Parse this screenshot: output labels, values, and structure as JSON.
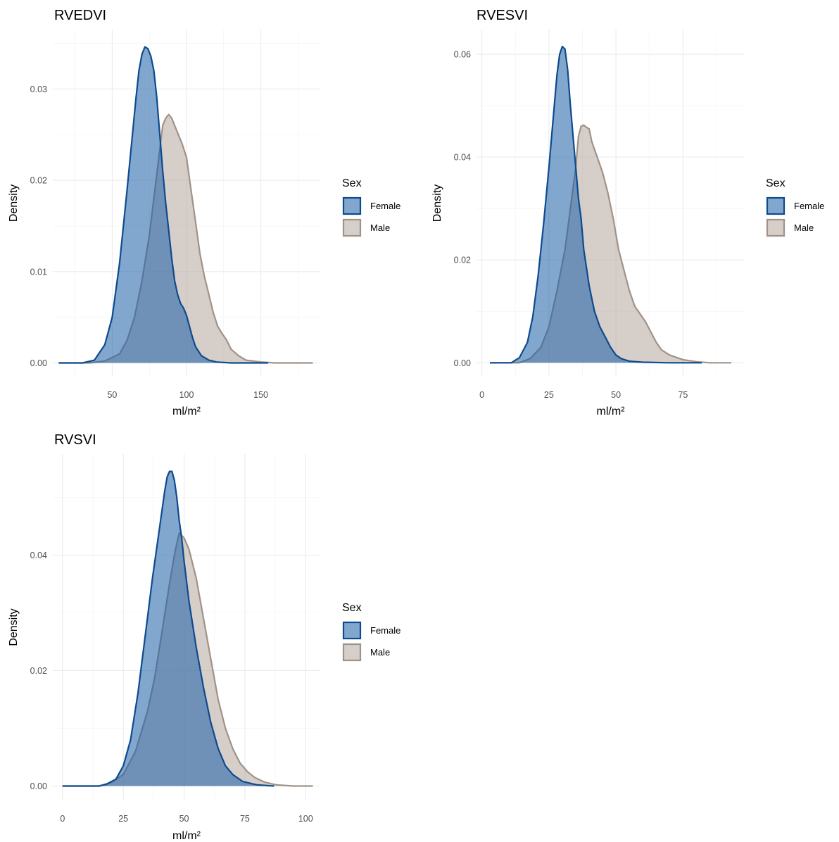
{
  "chart_data": [
    {
      "type": "area",
      "title": "RVEDVI",
      "xlabel": "ml/m²",
      "ylabel": "Density",
      "xlim": [
        10,
        190
      ],
      "ylim": [
        -0.0015,
        0.0365
      ],
      "x_ticks": [
        50,
        100,
        150
      ],
      "x_tick_labels": [
        "50",
        "100",
        "150"
      ],
      "y_ticks": [
        0,
        0.01,
        0.02,
        0.03
      ],
      "y_tick_labels": [
        "0.00",
        "0.01",
        "0.02",
        "0.03"
      ],
      "grid": true,
      "legend": {
        "title": "Sex",
        "placement": "right",
        "entries": [
          "Female",
          "Male"
        ]
      },
      "series": [
        {
          "name": "Female",
          "fill": "#1b5fa8",
          "stroke": "#0d4a8e",
          "points": [
            [
              14,
              0
            ],
            [
              30,
              0
            ],
            [
              38,
              0.0003
            ],
            [
              45,
              0.002
            ],
            [
              50,
              0.005
            ],
            [
              55,
              0.011
            ],
            [
              60,
              0.019
            ],
            [
              63,
              0.024
            ],
            [
              66,
              0.029
            ],
            [
              68,
              0.032
            ],
            [
              70,
              0.0338
            ],
            [
              72,
              0.0346
            ],
            [
              74,
              0.0344
            ],
            [
              76,
              0.0336
            ],
            [
              78,
              0.032
            ],
            [
              80,
              0.029
            ],
            [
              82,
              0.025
            ],
            [
              84,
              0.021
            ],
            [
              86,
              0.0175
            ],
            [
              88,
              0.0145
            ],
            [
              90,
              0.0115
            ],
            [
              92,
              0.009
            ],
            [
              94,
              0.0075
            ],
            [
              96,
              0.0065
            ],
            [
              98,
              0.006
            ],
            [
              100,
              0.0052
            ],
            [
              102,
              0.004
            ],
            [
              104,
              0.0028
            ],
            [
              106,
              0.0018
            ],
            [
              110,
              0.0008
            ],
            [
              115,
              0.0003
            ],
            [
              120,
              0.0001
            ],
            [
              130,
              0
            ],
            [
              155,
              0
            ]
          ]
        },
        {
          "name": "Male",
          "fill": "#b3a59c",
          "stroke": "#a09288",
          "points": [
            [
              14,
              0
            ],
            [
              35,
              0
            ],
            [
              45,
              0.0002
            ],
            [
              55,
              0.001
            ],
            [
              60,
              0.0025
            ],
            [
              65,
              0.005
            ],
            [
              70,
              0.009
            ],
            [
              75,
              0.014
            ],
            [
              78,
              0.018
            ],
            [
              81,
              0.022
            ],
            [
              84,
              0.026
            ],
            [
              86,
              0.0268
            ],
            [
              88,
              0.0272
            ],
            [
              90,
              0.0268
            ],
            [
              93,
              0.0256
            ],
            [
              97,
              0.024
            ],
            [
              100,
              0.0225
            ],
            [
              103,
              0.019
            ],
            [
              106,
              0.0155
            ],
            [
              109,
              0.012
            ],
            [
              112,
              0.0095
            ],
            [
              115,
              0.0075
            ],
            [
              118,
              0.0055
            ],
            [
              121,
              0.004
            ],
            [
              124,
              0.0032
            ],
            [
              127,
              0.0025
            ],
            [
              130,
              0.0015
            ],
            [
              135,
              0.0008
            ],
            [
              140,
              0.0003
            ],
            [
              150,
              0.0001
            ],
            [
              160,
              0
            ],
            [
              185,
              0
            ]
          ]
        }
      ]
    },
    {
      "type": "area",
      "title": "RVESVI",
      "xlabel": "ml/m²",
      "ylabel": "Density",
      "xlim": [
        -2,
        98
      ],
      "ylim": [
        -0.0027,
        0.0648
      ],
      "x_ticks": [
        0,
        25,
        50,
        75
      ],
      "x_tick_labels": [
        "0",
        "25",
        "50",
        "75"
      ],
      "y_ticks": [
        0,
        0.02,
        0.04,
        0.06
      ],
      "y_tick_labels": [
        "0.00",
        "0.02",
        "0.04",
        "0.06"
      ],
      "grid": true,
      "legend": {
        "title": "Sex",
        "placement": "right",
        "entries": [
          "Female",
          "Male"
        ]
      },
      "series": [
        {
          "name": "Female",
          "fill": "#1b5fa8",
          "stroke": "#0d4a8e",
          "points": [
            [
              3,
              0
            ],
            [
              11,
              0
            ],
            [
              14,
              0.001
            ],
            [
              17,
              0.004
            ],
            [
              19,
              0.009
            ],
            [
              21,
              0.017
            ],
            [
              23,
              0.027
            ],
            [
              25,
              0.038
            ],
            [
              27,
              0.05
            ],
            [
              28,
              0.056
            ],
            [
              29,
              0.06
            ],
            [
              30,
              0.0615
            ],
            [
              31,
              0.061
            ],
            [
              32,
              0.057
            ],
            [
              33,
              0.05
            ],
            [
              34,
              0.044
            ],
            [
              35,
              0.038
            ],
            [
              36,
              0.032
            ],
            [
              37,
              0.028
            ],
            [
              38,
              0.022
            ],
            [
              40,
              0.015
            ],
            [
              42,
              0.01
            ],
            [
              44,
              0.007
            ],
            [
              46,
              0.005
            ],
            [
              48,
              0.003
            ],
            [
              50,
              0.0015
            ],
            [
              52,
              0.0008
            ],
            [
              55,
              0.0003
            ],
            [
              60,
              0.0001
            ],
            [
              70,
              0
            ],
            [
              82,
              0
            ]
          ]
        },
        {
          "name": "Male",
          "fill": "#b3a59c",
          "stroke": "#a09288",
          "points": [
            [
              3,
              0
            ],
            [
              14,
              0
            ],
            [
              18,
              0.0008
            ],
            [
              22,
              0.003
            ],
            [
              25,
              0.007
            ],
            [
              28,
              0.014
            ],
            [
              31,
              0.022
            ],
            [
              33,
              0.03
            ],
            [
              35,
              0.038
            ],
            [
              36,
              0.044
            ],
            [
              37,
              0.046
            ],
            [
              38,
              0.0462
            ],
            [
              39,
              0.0458
            ],
            [
              40,
              0.0455
            ],
            [
              41,
              0.043
            ],
            [
              43,
              0.04
            ],
            [
              45,
              0.037
            ],
            [
              47,
              0.033
            ],
            [
              49,
              0.028
            ],
            [
              51,
              0.022
            ],
            [
              53,
              0.018
            ],
            [
              55,
              0.014
            ],
            [
              57,
              0.011
            ],
            [
              59,
              0.0095
            ],
            [
              61,
              0.008
            ],
            [
              63,
              0.006
            ],
            [
              65,
              0.004
            ],
            [
              67,
              0.0025
            ],
            [
              70,
              0.0015
            ],
            [
              75,
              0.0006
            ],
            [
              80,
              0.0002
            ],
            [
              85,
              0
            ],
            [
              93,
              0
            ]
          ]
        }
      ]
    },
    {
      "type": "area",
      "title": "RVSVI",
      "xlabel": "ml/m²",
      "ylabel": "Density",
      "xlim": [
        -4,
        106
      ],
      "ylim": [
        -0.0025,
        0.0575
      ],
      "x_ticks": [
        0,
        25,
        50,
        75,
        100
      ],
      "x_tick_labels": [
        "0",
        "25",
        "50",
        "75",
        "100"
      ],
      "y_ticks": [
        0,
        0.02,
        0.04
      ],
      "y_tick_labels": [
        "0.00",
        "0.02",
        "0.04"
      ],
      "grid": true,
      "legend": {
        "title": "Sex",
        "placement": "right",
        "entries": [
          "Female",
          "Male"
        ]
      },
      "series": [
        {
          "name": "Female",
          "fill": "#1b5fa8",
          "stroke": "#0d4a8e",
          "points": [
            [
              0,
              0
            ],
            [
              15,
              0
            ],
            [
              18,
              0.0003
            ],
            [
              22,
              0.0012
            ],
            [
              25,
              0.0035
            ],
            [
              28,
              0.008
            ],
            [
              31,
              0.016
            ],
            [
              34,
              0.026
            ],
            [
              37,
              0.036
            ],
            [
              40,
              0.045
            ],
            [
              42,
              0.051
            ],
            [
              43,
              0.0535
            ],
            [
              44,
              0.0545
            ],
            [
              45,
              0.0545
            ],
            [
              46,
              0.053
            ],
            [
              47,
              0.05
            ],
            [
              48,
              0.046
            ],
            [
              49,
              0.043
            ],
            [
              50,
              0.039
            ],
            [
              52,
              0.032
            ],
            [
              55,
              0.024
            ],
            [
              58,
              0.017
            ],
            [
              61,
              0.011
            ],
            [
              64,
              0.0065
            ],
            [
              67,
              0.0035
            ],
            [
              70,
              0.002
            ],
            [
              74,
              0.0008
            ],
            [
              80,
              0.0002
            ],
            [
              87,
              0
            ]
          ]
        },
        {
          "name": "Male",
          "fill": "#b3a59c",
          "stroke": "#a09288",
          "points": [
            [
              0,
              0
            ],
            [
              15,
              0
            ],
            [
              20,
              0.0006
            ],
            [
              25,
              0.002
            ],
            [
              30,
              0.006
            ],
            [
              35,
              0.013
            ],
            [
              38,
              0.019
            ],
            [
              41,
              0.027
            ],
            [
              44,
              0.035
            ],
            [
              46,
              0.04
            ],
            [
              47,
              0.042
            ],
            [
              48,
              0.0438
            ],
            [
              50,
              0.043
            ],
            [
              52,
              0.041
            ],
            [
              55,
              0.036
            ],
            [
              58,
              0.029
            ],
            [
              61,
              0.022
            ],
            [
              64,
              0.015
            ],
            [
              67,
              0.01
            ],
            [
              70,
              0.0065
            ],
            [
              73,
              0.004
            ],
            [
              76,
              0.0025
            ],
            [
              79,
              0.0015
            ],
            [
              83,
              0.0007
            ],
            [
              88,
              0.0002
            ],
            [
              95,
              0
            ],
            [
              103,
              0
            ]
          ]
        }
      ]
    }
  ]
}
